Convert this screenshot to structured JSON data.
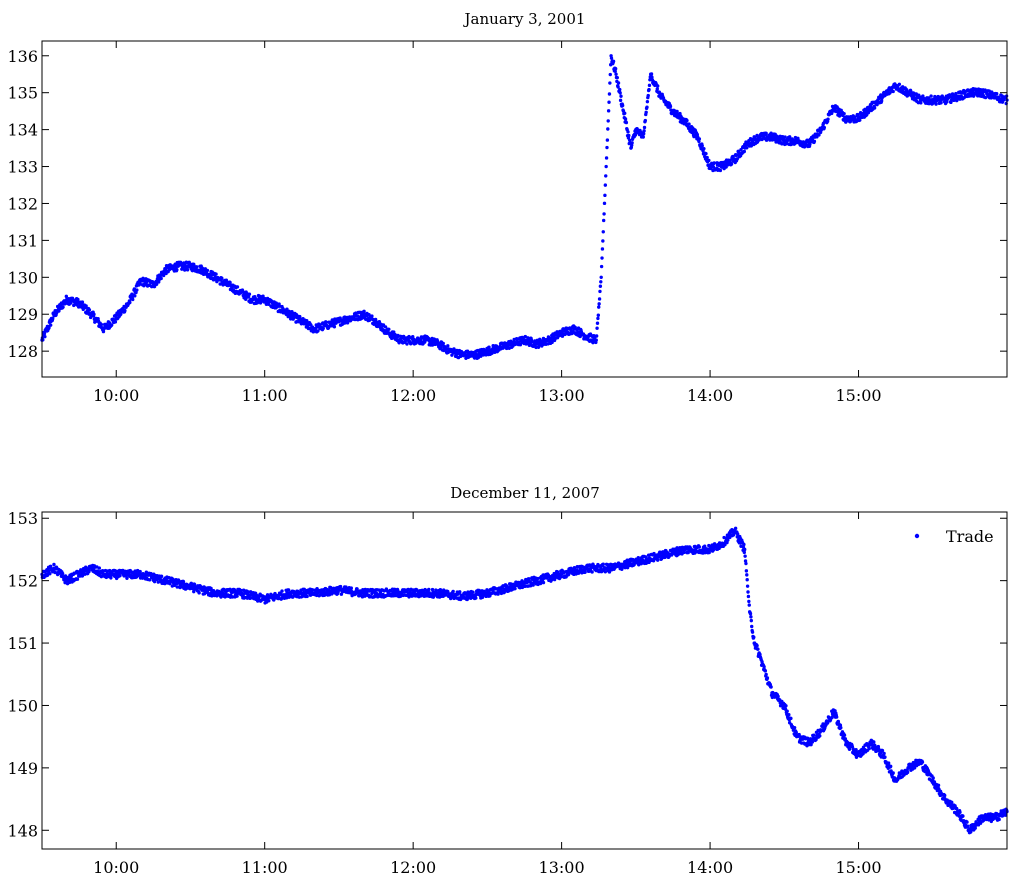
{
  "chart_data": [
    {
      "type": "scatter",
      "title": "January 3, 2001",
      "xlabel": "",
      "ylabel": "",
      "xlim": [
        "09:30",
        "16:00"
      ],
      "ylim": [
        127.3,
        136.4
      ],
      "xticks": [
        "10:00",
        "11:00",
        "12:00",
        "13:00",
        "14:00",
        "15:00"
      ],
      "yticks": [
        128,
        129,
        130,
        131,
        132,
        133,
        134,
        135,
        136
      ],
      "color": "#0000ff",
      "legend": null,
      "series": [
        {
          "x": [
            "09:30",
            "09:35",
            "09:40",
            "09:45",
            "09:50",
            "09:55",
            "10:00",
            "10:05",
            "10:10",
            "10:15",
            "10:20",
            "10:25",
            "10:30",
            "10:35",
            "10:40",
            "10:45",
            "10:50",
            "10:55",
            "11:00",
            "11:05",
            "11:10",
            "11:15",
            "11:20",
            "11:25",
            "11:30",
            "11:35",
            "11:40",
            "11:45",
            "11:50",
            "11:55",
            "12:00",
            "12:05",
            "12:10",
            "12:15",
            "12:20",
            "12:25",
            "12:30",
            "12:35",
            "12:40",
            "12:45",
            "12:50",
            "12:55",
            "13:00",
            "13:05",
            "13:10",
            "13:14",
            "13:16",
            "13:18",
            "13:20",
            "13:22",
            "13:25",
            "13:28",
            "13:30",
            "13:33",
            "13:36",
            "13:40",
            "13:45",
            "13:50",
            "13:55",
            "14:00",
            "14:05",
            "14:10",
            "14:15",
            "14:20",
            "14:25",
            "14:30",
            "14:35",
            "14:40",
            "14:45",
            "14:50",
            "14:55",
            "15:00",
            "15:05",
            "15:10",
            "15:15",
            "15:20",
            "15:25",
            "15:30",
            "15:35",
            "15:40",
            "15:45",
            "15:50",
            "15:55",
            "16:00"
          ],
          "y": [
            128.3,
            129.0,
            129.4,
            129.3,
            129.0,
            128.6,
            128.9,
            129.3,
            129.9,
            129.8,
            130.2,
            130.3,
            130.3,
            130.2,
            130.0,
            129.8,
            129.6,
            129.4,
            129.4,
            129.2,
            129.0,
            128.8,
            128.6,
            128.7,
            128.8,
            128.9,
            129.0,
            128.8,
            128.5,
            128.3,
            128.3,
            128.3,
            128.2,
            128.0,
            127.9,
            127.9,
            128.0,
            128.1,
            128.2,
            128.3,
            128.2,
            128.3,
            128.5,
            128.6,
            128.4,
            128.3,
            130.0,
            133.0,
            136.0,
            135.5,
            134.5,
            133.5,
            134.0,
            133.8,
            135.5,
            134.9,
            134.5,
            134.2,
            133.8,
            133.0,
            133.0,
            133.2,
            133.6,
            133.8,
            133.8,
            133.7,
            133.7,
            133.6,
            134.0,
            134.6,
            134.3,
            134.3,
            134.6,
            134.9,
            135.2,
            135.0,
            134.8,
            134.8,
            134.8,
            134.9,
            135.0,
            135.0,
            134.9,
            134.8
          ]
        }
      ]
    },
    {
      "type": "scatter",
      "title": "December 11, 2007",
      "xlabel": "",
      "ylabel": "",
      "xlim": [
        "09:30",
        "16:00"
      ],
      "ylim": [
        147.7,
        153.1
      ],
      "xticks": [
        "10:00",
        "11:00",
        "12:00",
        "13:00",
        "14:00",
        "15:00"
      ],
      "yticks": [
        148,
        149,
        150,
        151,
        152,
        153
      ],
      "color": "#0000ff",
      "legend": {
        "label": "Trade",
        "position": "top-right"
      },
      "series": [
        {
          "name": "Trade",
          "x": [
            "09:30",
            "09:35",
            "09:40",
            "09:45",
            "09:50",
            "09:55",
            "10:00",
            "10:10",
            "10:20",
            "10:30",
            "10:40",
            "10:50",
            "11:00",
            "11:10",
            "11:20",
            "11:30",
            "11:40",
            "11:50",
            "12:00",
            "12:10",
            "12:20",
            "12:30",
            "12:40",
            "12:50",
            "13:00",
            "13:10",
            "13:20",
            "13:30",
            "13:40",
            "13:50",
            "14:00",
            "14:05",
            "14:10",
            "14:14",
            "14:16",
            "14:18",
            "14:20",
            "14:25",
            "14:30",
            "14:35",
            "14:40",
            "14:45",
            "14:50",
            "14:55",
            "15:00",
            "15:05",
            "15:10",
            "15:15",
            "15:20",
            "15:25",
            "15:30",
            "15:35",
            "15:40",
            "15:45",
            "15:50",
            "15:55",
            "16:00"
          ],
          "y": [
            152.1,
            152.2,
            152.0,
            152.1,
            152.2,
            152.1,
            152.1,
            152.1,
            152.0,
            151.9,
            151.8,
            151.8,
            151.7,
            151.8,
            151.8,
            151.85,
            151.8,
            151.8,
            151.8,
            151.8,
            151.75,
            151.8,
            151.9,
            152.0,
            152.1,
            152.2,
            152.2,
            152.3,
            152.4,
            152.5,
            152.5,
            152.6,
            152.8,
            152.5,
            151.5,
            151.0,
            150.8,
            150.2,
            150.0,
            149.5,
            149.4,
            149.6,
            149.9,
            149.4,
            149.2,
            149.4,
            149.2,
            148.8,
            149.0,
            149.1,
            148.8,
            148.5,
            148.3,
            148.0,
            148.2,
            148.2,
            148.3
          ]
        }
      ]
    }
  ]
}
